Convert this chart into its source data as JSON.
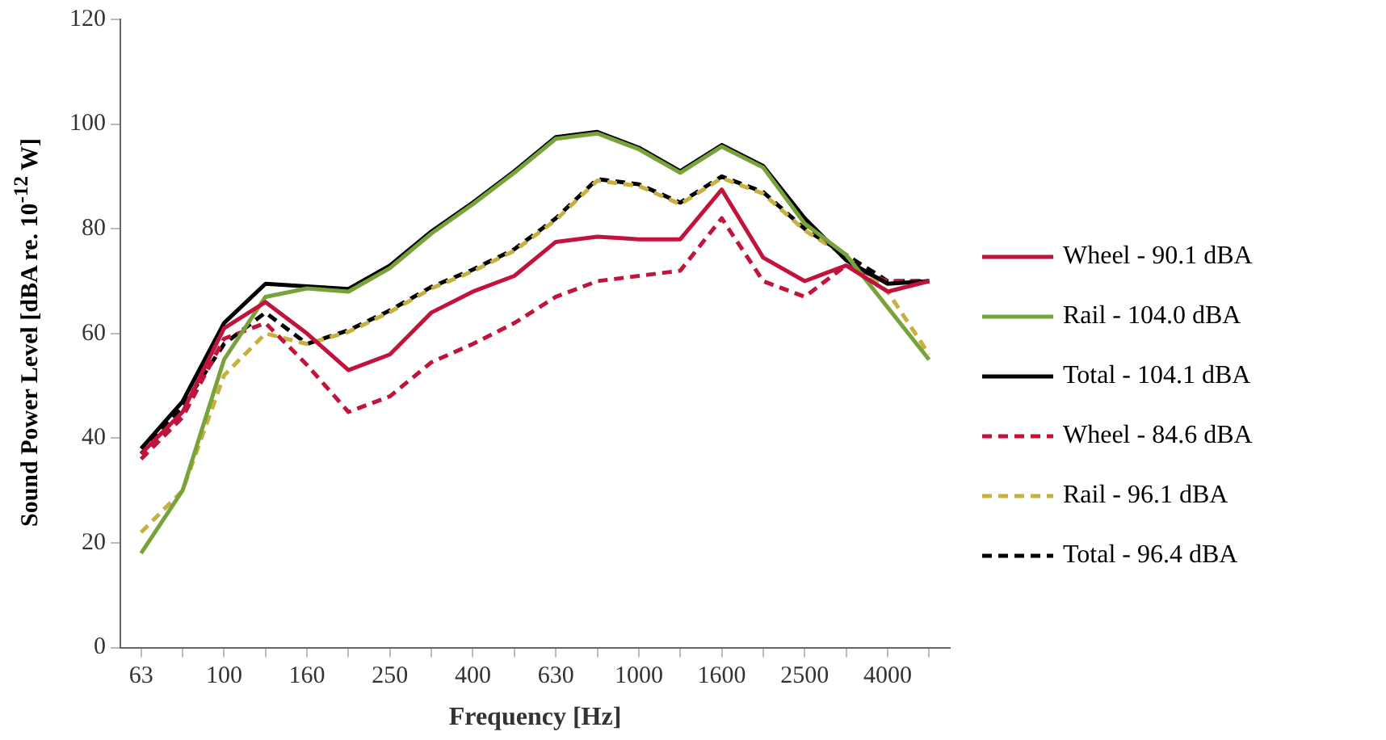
{
  "chart_data": {
    "type": "line",
    "xlabel": "Frequency [Hz]",
    "ylabel": "Sound Power Level [dBA re. 10$^{-12}$ W]",
    "categories": [
      "63",
      null,
      "100",
      null,
      "160",
      null,
      "250",
      null,
      "400",
      null,
      "630",
      null,
      "1000",
      null,
      "1600",
      null,
      "2500",
      null,
      "4000",
      null
    ],
    "ylim": [
      0,
      120
    ],
    "yticks": [
      0,
      20,
      40,
      60,
      80,
      100,
      120
    ],
    "grid": false,
    "legend": "right",
    "marker": "none",
    "series": [
      {
        "name": "Wheel - 90.1 dBA",
        "color": "#c0143c",
        "line_style": "solid",
        "values": [
          37,
          45,
          61,
          66,
          60,
          53,
          56,
          64,
          68,
          71,
          77.5,
          78.5,
          78,
          78,
          87.5,
          74.5,
          70,
          73,
          68,
          70
        ]
      },
      {
        "name": "Rail - 104.0 dBA",
        "color": "#77a33a",
        "line_style": "solid",
        "values": [
          18,
          30,
          55,
          67,
          68.6,
          68,
          72.5,
          79.1,
          84.7,
          90.7,
          97.2,
          98.2,
          95.2,
          90.7,
          95.7,
          91.7,
          81,
          75,
          65,
          55
        ]
      },
      {
        "name": "Total - 104.1 dBA",
        "color": "#000000",
        "line_style": "solid",
        "values": [
          38,
          47,
          62,
          69.5,
          69,
          68.5,
          73,
          79.5,
          85,
          91,
          97.5,
          98.5,
          95.5,
          91,
          96,
          92,
          82,
          74,
          69.5,
          70
        ]
      },
      {
        "name": "Wheel - 84.6 dBA",
        "color": "#c0143c",
        "line_style": "dashed",
        "values": [
          36,
          44,
          59,
          62,
          54,
          45,
          48,
          54.5,
          58,
          62,
          67,
          70,
          71,
          72,
          82,
          70,
          67,
          73,
          70,
          70
        ]
      },
      {
        "name": "Rail - 96.1 dBA",
        "color": "#c8b040",
        "line_style": "dashed",
        "values": [
          22,
          30,
          52,
          60,
          58,
          60.3,
          64.1,
          68.6,
          71.9,
          75.8,
          81.7,
          89.2,
          88.2,
          84.7,
          89.7,
          86.7,
          79.7,
          74.7,
          68,
          56
        ]
      },
      {
        "name": "Total - 96.4 dBA",
        "color": "#000000",
        "line_style": "dashed",
        "values": [
          37,
          46,
          58,
          64,
          58,
          60.6,
          64.4,
          68.9,
          72.2,
          76.1,
          82,
          89.5,
          88.5,
          85,
          90,
          87,
          80,
          75,
          70,
          70
        ]
      }
    ]
  }
}
